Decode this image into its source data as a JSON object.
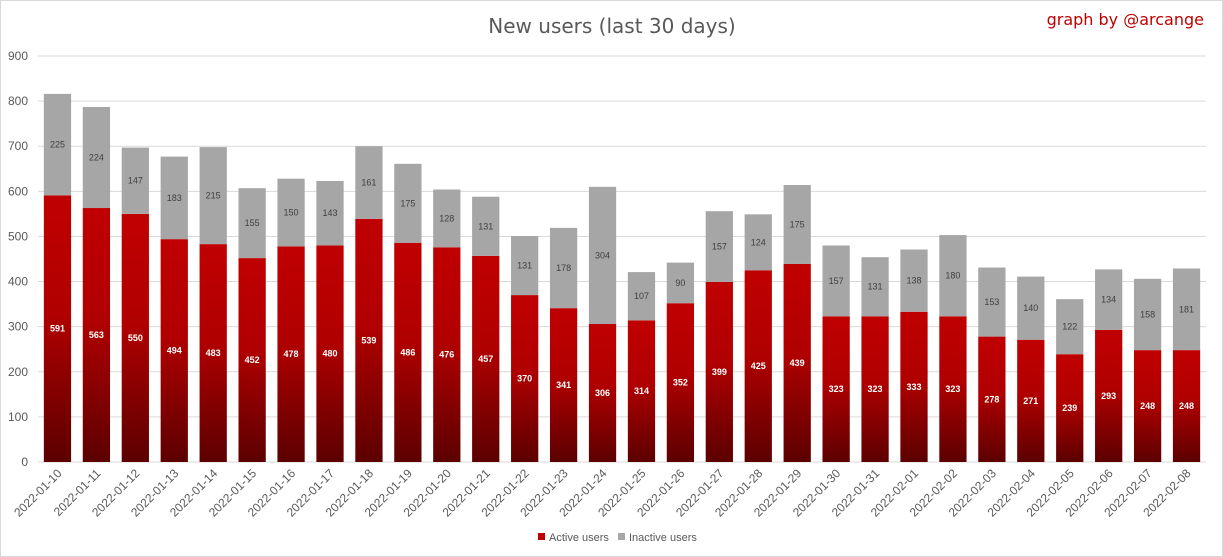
{
  "chart_data": {
    "type": "bar",
    "stacked": true,
    "title": "New users (last 30 days)",
    "credit": "graph by @arcange",
    "xlabel": "",
    "ylabel": "",
    "ylim": [
      0,
      900
    ],
    "yticks": [
      0,
      100,
      200,
      300,
      400,
      500,
      600,
      700,
      800,
      900
    ],
    "grid": true,
    "legend_position": "bottom",
    "categories": [
      "2022-01-10",
      "2022-01-11",
      "2022-01-12",
      "2022-01-13",
      "2022-01-14",
      "2022-01-15",
      "2022-01-16",
      "2022-01-17",
      "2022-01-18",
      "2022-01-19",
      "2022-01-20",
      "2022-01-21",
      "2022-01-22",
      "2022-01-23",
      "2022-01-24",
      "2022-01-25",
      "2022-01-26",
      "2022-01-27",
      "2022-01-28",
      "2022-01-29",
      "2022-01-30",
      "2022-01-31",
      "2022-02-01",
      "2022-02-02",
      "2022-02-03",
      "2022-02-04",
      "2022-02-05",
      "2022-02-06",
      "2022-02-07",
      "2022-02-08"
    ],
    "series": [
      {
        "name": "Active users",
        "color": "#c00000",
        "color_dark": "#5c0000",
        "values": [
          591,
          563,
          550,
          494,
          483,
          452,
          478,
          480,
          539,
          486,
          476,
          457,
          370,
          341,
          306,
          314,
          352,
          399,
          425,
          439,
          323,
          323,
          333,
          323,
          278,
          271,
          239,
          293,
          248,
          248
        ]
      },
      {
        "name": "Inactive users",
        "color": "#a6a6a6",
        "values": [
          225,
          224,
          147,
          183,
          215,
          155,
          150,
          143,
          161,
          175,
          128,
          131,
          131,
          178,
          304,
          107,
          90,
          157,
          124,
          175,
          157,
          131,
          138,
          180,
          153,
          140,
          122,
          134,
          158,
          181
        ]
      }
    ]
  }
}
